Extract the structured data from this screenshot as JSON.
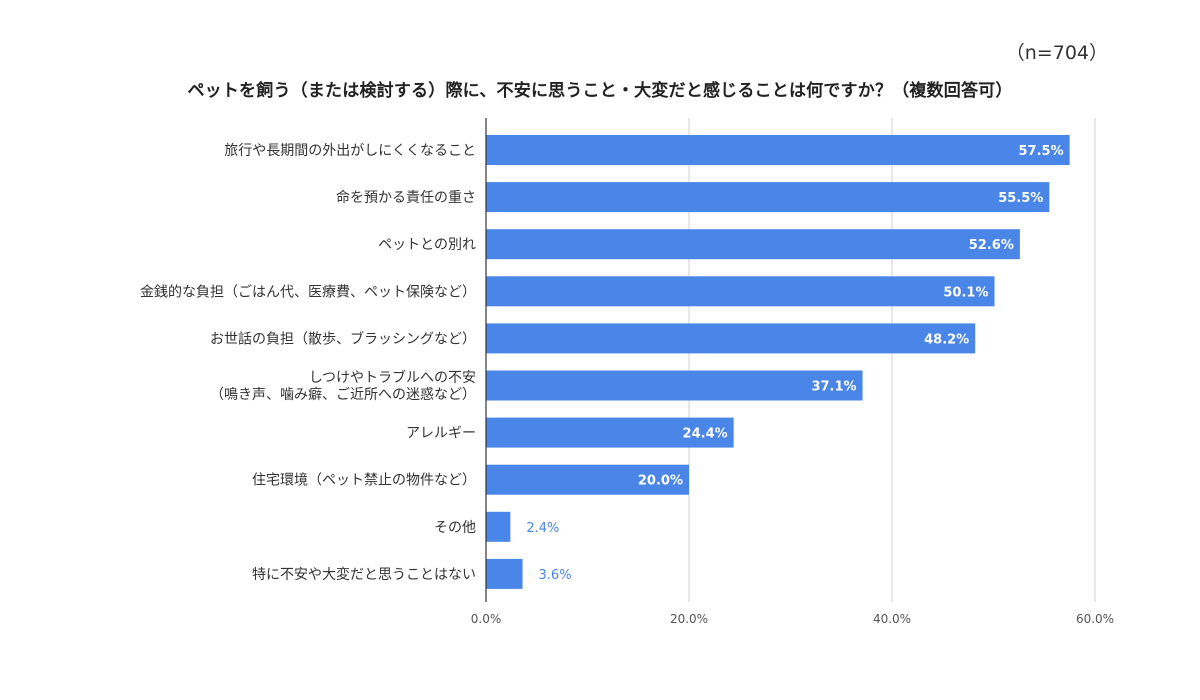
{
  "sample_size": "（n=704）",
  "chart_data": {
    "type": "bar",
    "orientation": "horizontal",
    "title": "ペットを飼う（または検討する）際に、不安に思うこと・大変だと感じることは何ですか？（複数回答可）",
    "categories": [
      [
        "旅行や長期間の外出がしにくくなること"
      ],
      [
        "命を預かる責任の重さ"
      ],
      [
        "ペットとの別れ"
      ],
      [
        "金銭的な負担（ごはん代、医療費、ペット保険など）"
      ],
      [
        "お世話の負担（散歩、ブラッシングなど）"
      ],
      [
        "しつけやトラブルへの不安",
        "（鳴き声、噛み癖、ご近所への迷惑など）"
      ],
      [
        "アレルギー"
      ],
      [
        "住宅環境（ペット禁止の物件など）"
      ],
      [
        "その他"
      ],
      [
        "特に不安や大変だと思うことはない"
      ]
    ],
    "values": [
      57.5,
      55.5,
      52.6,
      50.1,
      48.2,
      37.1,
      24.4,
      20.0,
      2.4,
      3.6
    ],
    "value_labels": [
      "57.5%",
      "55.5%",
      "52.6%",
      "50.1%",
      "48.2%",
      "37.1%",
      "24.4%",
      "20.0%",
      "2.4%",
      "3.6%"
    ],
    "xlim": [
      0,
      60
    ],
    "xticks": [
      0,
      20,
      40,
      60
    ],
    "xtick_labels": [
      "0.0%",
      "20.0%",
      "40.0%",
      "60.0%"
    ],
    "grid": true,
    "bar_color": "#4a86e8",
    "inside_label_color": "#ffffff",
    "outside_label_color": "#4a86e8"
  }
}
